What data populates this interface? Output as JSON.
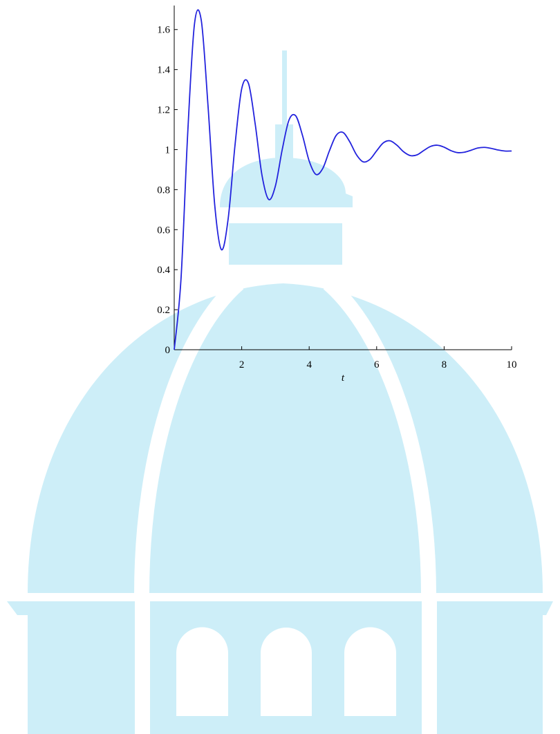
{
  "chart_data": {
    "type": "line",
    "x_label": "t",
    "x": [
      0,
      0.2,
      0.4,
      0.6,
      0.8,
      1.0,
      1.2,
      1.4,
      1.6,
      1.8,
      2.0,
      2.2,
      2.4,
      2.6,
      2.8,
      3.0,
      3.2,
      3.4,
      3.6,
      3.8,
      4.0,
      4.2,
      4.4,
      4.6,
      4.8,
      5.0,
      5.2,
      5.4,
      5.6,
      5.8,
      6.0,
      6.2,
      6.4,
      6.6,
      6.8,
      7.0,
      7.2,
      7.4,
      7.6,
      7.8,
      8.0,
      8.2,
      8.4,
      8.6,
      8.8,
      9.0,
      9.2,
      9.4,
      9.6,
      9.8,
      10
    ],
    "series": [
      {
        "color": "#2222dd",
        "values": [
          0,
          0.351,
          1.082,
          1.627,
          1.648,
          1.223,
          0.724,
          0.5,
          0.656,
          1.019,
          1.304,
          1.331,
          1.128,
          0.873,
          0.751,
          0.819,
          0.999,
          1.147,
          1.169,
          1.072,
          0.943,
          0.876,
          0.905,
          0.994,
          1.071,
          1.086,
          1.04,
          0.975,
          0.939,
          0.951,
          0.994,
          1.034,
          1.044,
          1.022,
          0.989,
          0.97,
          0.974,
          0.996,
          1.016,
          1.022,
          1.012,
          0.995,
          0.985,
          0.987,
          0.997,
          1.008,
          1.011,
          1.006,
          0.998,
          0.993,
          0.993
        ]
      }
    ],
    "xlim": [
      0,
      10
    ],
    "xticks": [
      2,
      4,
      6,
      8,
      10
    ],
    "ylim": [
      0,
      1.72
    ],
    "yticks": [
      0,
      0.2,
      0.4,
      0.6,
      0.8,
      1,
      1.2,
      1.4,
      1.6
    ]
  }
}
